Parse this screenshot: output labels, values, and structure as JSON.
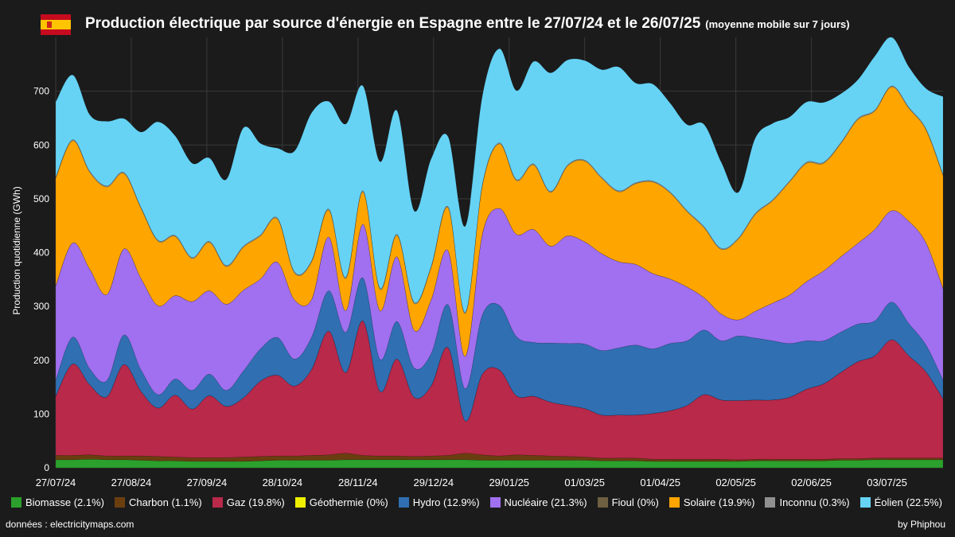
{
  "header": {
    "title": "Production électrique par source d'énergie en Espagne entre le 27/07/24 et le 26/07/25",
    "subtitle": "(moyenne mobile sur 7 jours)",
    "flag_colors": {
      "red": "#c60b1e",
      "yellow": "#ffc400"
    }
  },
  "footer": {
    "source": "données : electricitymaps.com",
    "credit": "by Phiphou"
  },
  "chart_data": {
    "type": "area",
    "stacked": true,
    "ylabel": "Production quotidienne (GWh)",
    "ylim": [
      0,
      800
    ],
    "yticks": [
      0,
      100,
      200,
      300,
      400,
      500,
      600,
      700
    ],
    "grid": true,
    "legend_position": "bottom",
    "x": [
      "27/07/24",
      "03/08/24",
      "10/08/24",
      "17/08/24",
      "24/08/24",
      "31/08/24",
      "07/09/24",
      "14/09/24",
      "21/09/24",
      "28/09/24",
      "05/10/24",
      "12/10/24",
      "19/10/24",
      "26/10/24",
      "02/11/24",
      "09/11/24",
      "16/11/24",
      "23/11/24",
      "30/11/24",
      "07/12/24",
      "14/12/24",
      "21/12/24",
      "28/12/24",
      "04/01/25",
      "11/01/25",
      "18/01/25",
      "25/01/25",
      "01/02/25",
      "08/02/25",
      "15/02/25",
      "22/02/25",
      "01/03/25",
      "08/03/25",
      "15/03/25",
      "22/03/25",
      "29/03/25",
      "05/04/25",
      "12/04/25",
      "19/04/25",
      "26/04/25",
      "03/05/25",
      "10/05/25",
      "17/05/25",
      "24/05/25",
      "31/05/25",
      "07/06/25",
      "14/06/25",
      "21/06/25",
      "28/06/25",
      "05/07/25",
      "12/07/25",
      "19/07/25",
      "26/07/25"
    ],
    "xtick_labels": [
      "27/07/24",
      "27/08/24",
      "27/09/24",
      "28/10/24",
      "28/11/24",
      "29/12/24",
      "29/01/25",
      "01/03/25",
      "01/04/25",
      "02/05/25",
      "02/06/25",
      "03/07/25"
    ],
    "series": [
      {
        "name": "Biomasse (2.1%)",
        "color": "#2ca02c",
        "values": [
          15,
          15,
          16,
          15,
          15,
          14,
          13,
          13,
          12,
          12,
          12,
          12,
          13,
          14,
          14,
          14,
          14,
          15,
          15,
          15,
          15,
          15,
          15,
          15,
          15,
          14,
          14,
          14,
          14,
          14,
          14,
          14,
          13,
          13,
          13,
          12,
          12,
          12,
          12,
          12,
          12,
          13,
          13,
          13,
          13,
          13,
          14,
          14,
          15,
          15,
          15,
          15,
          15
        ]
      },
      {
        "name": "Charbon (1.1%)",
        "color": "#6b3e10",
        "values": [
          8,
          8,
          8,
          7,
          7,
          8,
          8,
          7,
          7,
          7,
          7,
          8,
          8,
          8,
          8,
          9,
          10,
          12,
          8,
          7,
          7,
          6,
          7,
          8,
          12,
          10,
          8,
          10,
          9,
          8,
          7,
          6,
          5,
          5,
          5,
          4,
          4,
          4,
          4,
          4,
          3,
          3,
          3,
          3,
          3,
          3,
          3,
          3,
          3,
          3,
          3,
          3,
          3
        ]
      },
      {
        "name": "Gaz (19.8%)",
        "color": "#b8294a",
        "values": [
          110,
          170,
          130,
          110,
          170,
          120,
          90,
          115,
          90,
          115,
          95,
          110,
          140,
          150,
          130,
          160,
          230,
          150,
          250,
          120,
          180,
          110,
          130,
          200,
          60,
          150,
          160,
          110,
          110,
          100,
          95,
          90,
          80,
          80,
          80,
          85,
          90,
          100,
          120,
          110,
          110,
          110,
          110,
          115,
          130,
          140,
          160,
          180,
          190,
          220,
          190,
          160,
          110
        ]
      },
      {
        "name": "Géothermie (0%)",
        "color": "#f0f000",
        "values": [
          0,
          0,
          0,
          0,
          0,
          0,
          0,
          0,
          0,
          0,
          0,
          0,
          0,
          0,
          0,
          0,
          0,
          0,
          0,
          0,
          0,
          0,
          0,
          0,
          0,
          0,
          0,
          0,
          0,
          0,
          0,
          0,
          0,
          0,
          0,
          0,
          0,
          0,
          0,
          0,
          0,
          0,
          0,
          0,
          0,
          0,
          0,
          0,
          0,
          0,
          0,
          0,
          0
        ]
      },
      {
        "name": "Hydro (12.9%)",
        "color": "#2f6fb2",
        "values": [
          30,
          50,
          30,
          30,
          55,
          40,
          25,
          30,
          35,
          40,
          30,
          50,
          60,
          70,
          50,
          60,
          75,
          75,
          80,
          60,
          70,
          55,
          60,
          80,
          60,
          110,
          120,
          110,
          100,
          110,
          115,
          120,
          120,
          125,
          130,
          120,
          125,
          120,
          120,
          110,
          120,
          115,
          110,
          100,
          90,
          80,
          75,
          70,
          65,
          70,
          60,
          50,
          35
        ]
      },
      {
        "name": "Nucléaire (21.3%)",
        "color": "#a070f0",
        "values": [
          175,
          175,
          185,
          160,
          160,
          170,
          165,
          155,
          165,
          155,
          160,
          150,
          130,
          140,
          110,
          70,
          100,
          40,
          100,
          90,
          120,
          70,
          100,
          100,
          60,
          150,
          180,
          190,
          210,
          180,
          200,
          190,
          180,
          160,
          150,
          140,
          120,
          100,
          60,
          50,
          30,
          50,
          70,
          90,
          110,
          130,
          140,
          150,
          170,
          170,
          190,
          190,
          170
        ]
      },
      {
        "name": "Fioul (0%)",
        "color": "#6e6040",
        "values": [
          0,
          0,
          0,
          0,
          0,
          0,
          0,
          0,
          0,
          0,
          0,
          0,
          0,
          0,
          0,
          0,
          0,
          0,
          0,
          0,
          0,
          0,
          0,
          0,
          0,
          0,
          0,
          0,
          0,
          0,
          0,
          0,
          0,
          0,
          0,
          0,
          0,
          0,
          0,
          0,
          0,
          0,
          0,
          0,
          0,
          0,
          0,
          0,
          0,
          0,
          0,
          0,
          0
        ]
      },
      {
        "name": "Solaire (19.9%)",
        "color": "#ffa500",
        "values": [
          200,
          190,
          180,
          200,
          140,
          130,
          120,
          110,
          80,
          90,
          70,
          80,
          80,
          80,
          50,
          70,
          50,
          60,
          60,
          40,
          40,
          50,
          60,
          80,
          80,
          90,
          120,
          100,
          120,
          100,
          130,
          150,
          140,
          130,
          150,
          170,
          160,
          140,
          130,
          120,
          150,
          180,
          190,
          210,
          220,
          200,
          210,
          230,
          220,
          230,
          210,
          210,
          210
        ]
      },
      {
        "name": "Inconnu (0.3%)",
        "color": "#909090",
        "values": [
          2,
          2,
          2,
          2,
          2,
          2,
          2,
          2,
          2,
          2,
          2,
          2,
          2,
          2,
          2,
          2,
          2,
          2,
          2,
          2,
          2,
          2,
          2,
          2,
          2,
          2,
          2,
          2,
          2,
          2,
          2,
          2,
          2,
          2,
          2,
          2,
          2,
          2,
          2,
          2,
          2,
          2,
          2,
          2,
          2,
          2,
          2,
          2,
          2,
          2,
          2,
          2,
          2
        ]
      },
      {
        "name": "Éolien (22.5%)",
        "color": "#66d3f5",
        "values": [
          140,
          120,
          105,
          120,
          100,
          140,
          220,
          185,
          175,
          155,
          160,
          220,
          170,
          130,
          225,
          275,
          200,
          285,
          195,
          235,
          230,
          170,
          200,
          130,
          160,
          165,
          175,
          165,
          190,
          220,
          195,
          185,
          200,
          230,
          185,
          180,
          165,
          160,
          190,
          160,
          85,
          140,
          142,
          119,
          112,
          111,
          91,
          72,
          100,
          90,
          75,
          75,
          145
        ]
      }
    ]
  }
}
